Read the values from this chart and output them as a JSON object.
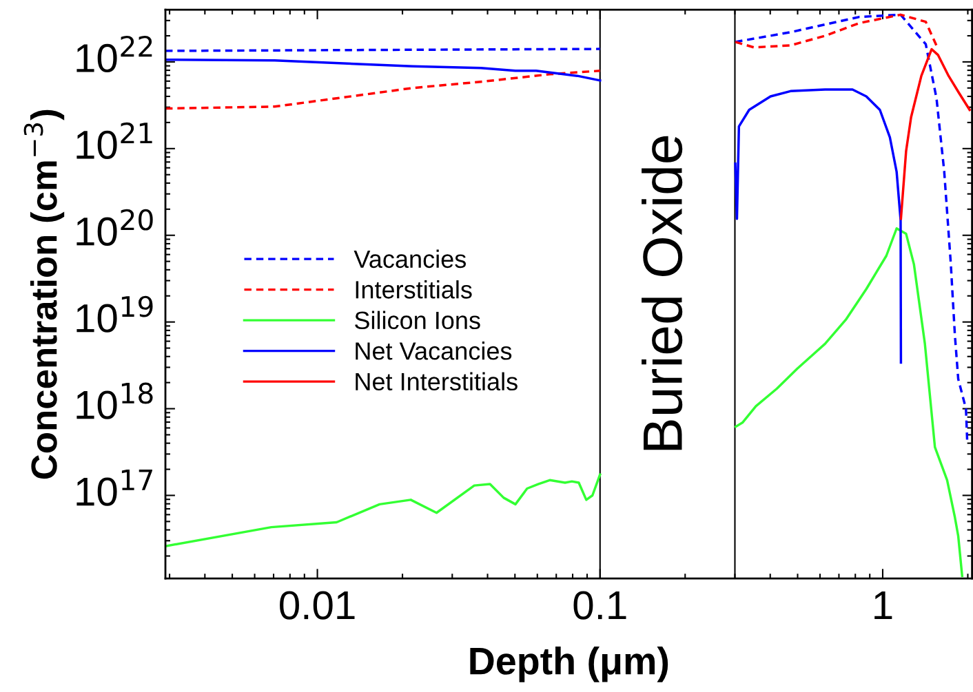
{
  "chart_data": {
    "type": "line",
    "xlabel": "Depth (μm)",
    "ylabel": "Concentration (cm$^{−3}$)",
    "log": "xy",
    "xlim": [
      0.0029,
      2.07
    ],
    "ylim": [
      1.1e+16,
      4e+22
    ],
    "xticks": [
      0.01,
      0.1,
      1
    ],
    "yticks": [
      {
        "value": 1e+17,
        "label": "10$^{17}$"
      },
      {
        "value": 1e+18,
        "label": "10$^{18}$"
      },
      {
        "value": 1e+19,
        "label": "10$^{19}$"
      },
      {
        "value": 1e+20,
        "label": "10$^{20}$"
      },
      {
        "value": 1e+21,
        "label": "10$^{21}$"
      },
      {
        "value": 1e+22,
        "label": "10$^{22}$"
      }
    ],
    "grid": false,
    "legend": "left",
    "marker": "none",
    "ref_lines": [
      {
        "axis": "x",
        "value": 0.1,
        "color": "#000000"
      },
      {
        "axis": "x",
        "value": 0.3,
        "color": "#000000"
      }
    ],
    "annotations": [
      "Buried Oxide"
    ],
    "series": [
      {
        "name": "Vacancies",
        "color": "#0000ff",
        "line_style": "dashed",
        "x": [
          0.0029,
          0.1,
          0.2,
          0.301,
          0.472,
          0.625,
          0.826,
          1.157,
          1.42,
          1.55,
          1.65,
          1.74,
          1.8,
          1.85,
          1.97,
          1.99
        ],
        "values": [
          1.34e+22,
          1.41e+22,
          null,
          1.7e+22,
          2.2e+22,
          2.7e+22,
          3.3e+22,
          3.5e+22,
          1.6e+22,
          3.8e+21,
          5.5e+20,
          4.9e+19,
          7.1e+18,
          2.2e+18,
          1e+18,
          4.3e+17
        ]
      },
      {
        "name": "Interstitials",
        "color": "#ff0000",
        "line_style": "dashed",
        "x": [
          0.0029,
          0.00706,
          0.0124,
          0.0217,
          0.0379,
          0.0664,
          0.1,
          0.2,
          0.301,
          0.35,
          0.472,
          0.625,
          0.826,
          1.157,
          1.42,
          1.57
        ],
        "values": [
          2.9e+21,
          3.05e+21,
          3.9e+21,
          5e+21,
          5.9e+21,
          7.2e+21,
          7.9e+21,
          null,
          1.7e+22,
          1.47e+22,
          1.55e+22,
          2e+22,
          2.8e+22,
          3.5e+22,
          2.9e+22,
          1.4e+22
        ]
      },
      {
        "name": "Silicon Ions",
        "color": "#33ff33",
        "line_style": "solid",
        "x": [
          0.0029,
          0.00687,
          0.0117,
          0.0166,
          0.0214,
          0.0264,
          0.0359,
          0.0408,
          0.0456,
          0.0502,
          0.0552,
          0.0604,
          0.0664,
          0.0752,
          0.0795,
          0.0841,
          0.0894,
          0.094,
          0.1,
          0.2,
          0.302,
          0.319,
          0.356,
          0.422,
          0.499,
          0.625,
          0.74,
          0.875,
          1.03,
          1.12,
          1.21,
          1.29,
          1.41,
          1.53,
          1.69,
          1.8,
          1.85,
          1.91
        ],
        "values": [
          2.6e+16,
          4.3e+16,
          4.9e+16,
          7.9e+16,
          8.9e+16,
          6.3e+16,
          1.3e+17,
          1.35e+17,
          9.4e+16,
          7.9e+16,
          1.2e+17,
          1.35e+17,
          1.5e+17,
          1.4e+17,
          1.45e+17,
          1.4e+17,
          8.9e+16,
          1e+17,
          1.74e+17,
          null,
          6.2e+17,
          6.9e+17,
          1.07e+18,
          1.7e+18,
          2.9e+18,
          5.6e+18,
          1.06e+19,
          2.4e+19,
          5.8e+19,
          1.2e+20,
          1.04e+20,
          4.6e+19,
          5.6e+18,
          3.6e+17,
          1.5e+17,
          5.6e+16,
          3.4e+16,
          1.18e+16
        ]
      },
      {
        "name": "Net Vacancies",
        "color": "#0000ff",
        "line_style": "solid",
        "x": [
          0.0029,
          0.00706,
          0.0217,
          0.0379,
          0.0502,
          0.0594,
          0.0831,
          0.1,
          0.2,
          0.301,
          0.305,
          0.31,
          0.337,
          0.401,
          0.472,
          0.625,
          0.782,
          0.875,
          0.977,
          1.06,
          1.12,
          1.157,
          1.16
        ],
        "values": [
          1.06e+22,
          1.04e+22,
          8.9e+21,
          8.5e+21,
          7.9e+21,
          7.9e+21,
          6.9e+21,
          6.1e+21,
          null,
          6.7e+20,
          1.55e+20,
          1.8e+21,
          2.8e+21,
          4e+21,
          4.6e+21,
          4.8e+21,
          4.8e+21,
          4e+21,
          2.8e+21,
          1.35e+21,
          5.4e+20,
          1.5e+20,
          3.4e+18
        ]
      },
      {
        "name": "Net Interstitials",
        "color": "#ff0000",
        "line_style": "solid",
        "x": [
          1.16,
          1.21,
          1.26,
          1.37,
          1.49,
          1.57,
          1.71,
          1.86,
          2.03
        ],
        "values": [
          1.55e+20,
          9.4e+20,
          2.3e+21,
          6.9e+21,
          1.4e+22,
          1.2e+22,
          6.9e+21,
          4.4e+21,
          2.8e+21
        ]
      }
    ]
  }
}
